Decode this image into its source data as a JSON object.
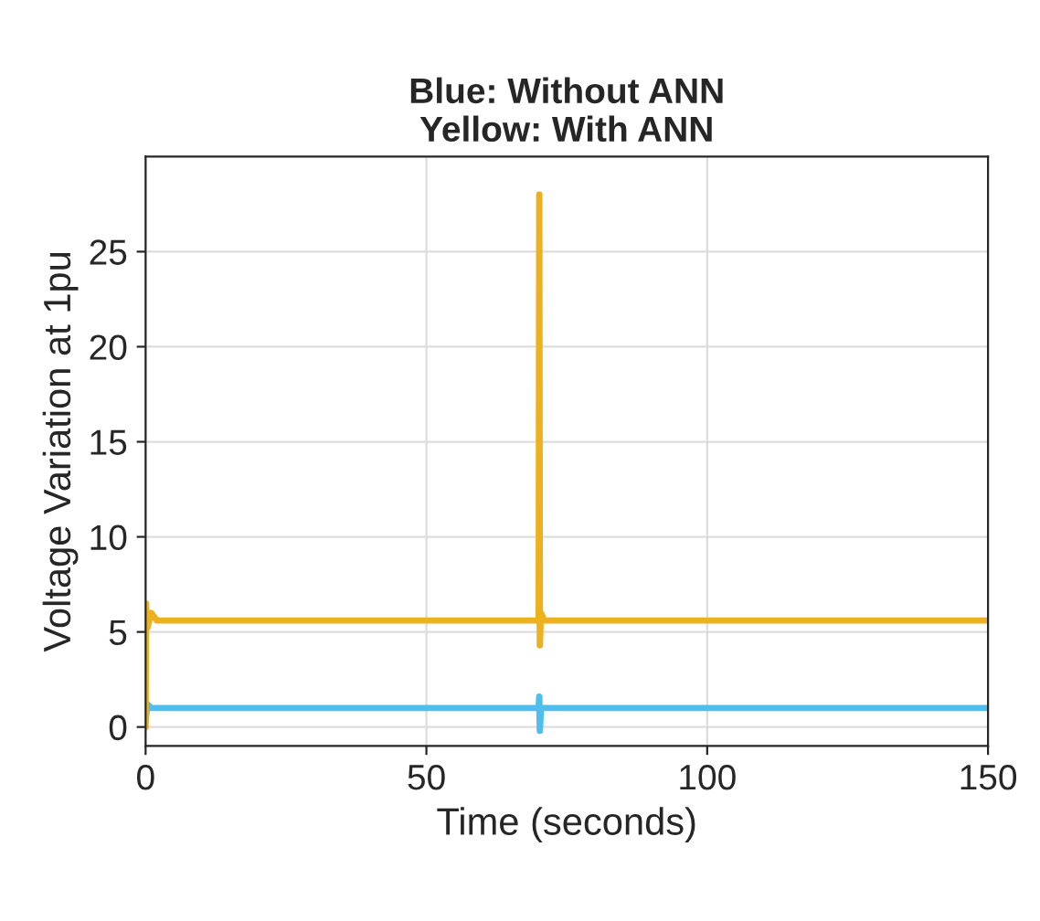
{
  "chart_data": {
    "type": "line",
    "title": "Blue: Without ANN\nYellow: With ANN",
    "xlabel": "Time (seconds)",
    "ylabel": "Voltage Variation at 1pu",
    "series": [
      {
        "color": "#4dbeee",
        "x": [
          0,
          0.3,
          1,
          70,
          70.1,
          70.2,
          70.4,
          150
        ],
        "values": [
          0.3,
          1.2,
          1,
          1,
          1.6,
          -0.2,
          1,
          1
        ]
      },
      {
        "color": "#edb120",
        "x": [
          0,
          0.05,
          0.3,
          1,
          2,
          70,
          70.1,
          70.2,
          70.4,
          71,
          150
        ],
        "values": [
          0,
          6.5,
          5.2,
          6,
          5.6,
          5.6,
          28,
          4.3,
          6,
          5.6,
          5.6
        ]
      }
    ],
    "xlim": [
      0,
      150
    ],
    "xticks": [
      0,
      50,
      100,
      150
    ],
    "ylim": [
      -1,
      30
    ],
    "yticks": [
      0,
      5,
      10,
      15,
      20,
      25
    ],
    "grid": true,
    "line_style": "solid",
    "marker": "none"
  }
}
